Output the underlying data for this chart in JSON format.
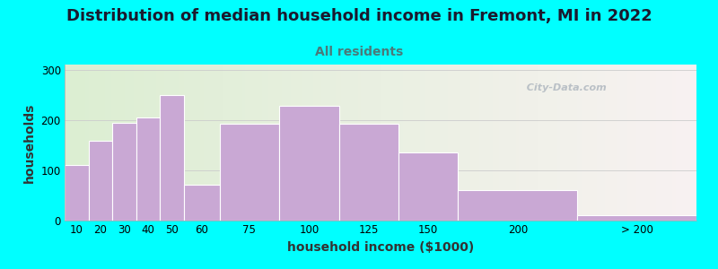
{
  "title": "Distribution of median household income in Fremont, MI in 2022",
  "subtitle": "All residents",
  "xlabel": "household income ($1000)",
  "ylabel": "households",
  "bar_labels": [
    "10",
    "20",
    "30",
    "40",
    "50",
    "60",
    "75",
    "100",
    "125",
    "150",
    "200",
    "> 200"
  ],
  "bar_values": [
    110,
    158,
    195,
    205,
    250,
    72,
    193,
    228,
    193,
    135,
    60,
    10
  ],
  "bar_color": "#C9A8D4",
  "bar_edge_color": "#B090C0",
  "background_color": "#00FFFF",
  "yticks": [
    0,
    100,
    200,
    300
  ],
  "ylim": [
    0,
    310
  ],
  "watermark": "  City-Data.com",
  "title_fontsize": 13,
  "subtitle_fontsize": 10,
  "axis_label_fontsize": 10,
  "tick_fontsize": 8.5,
  "title_color": "#1a1a2e",
  "subtitle_color": "#4a7a7a",
  "widths": [
    10,
    10,
    10,
    10,
    10,
    15,
    25,
    25,
    25,
    25,
    50,
    50
  ]
}
